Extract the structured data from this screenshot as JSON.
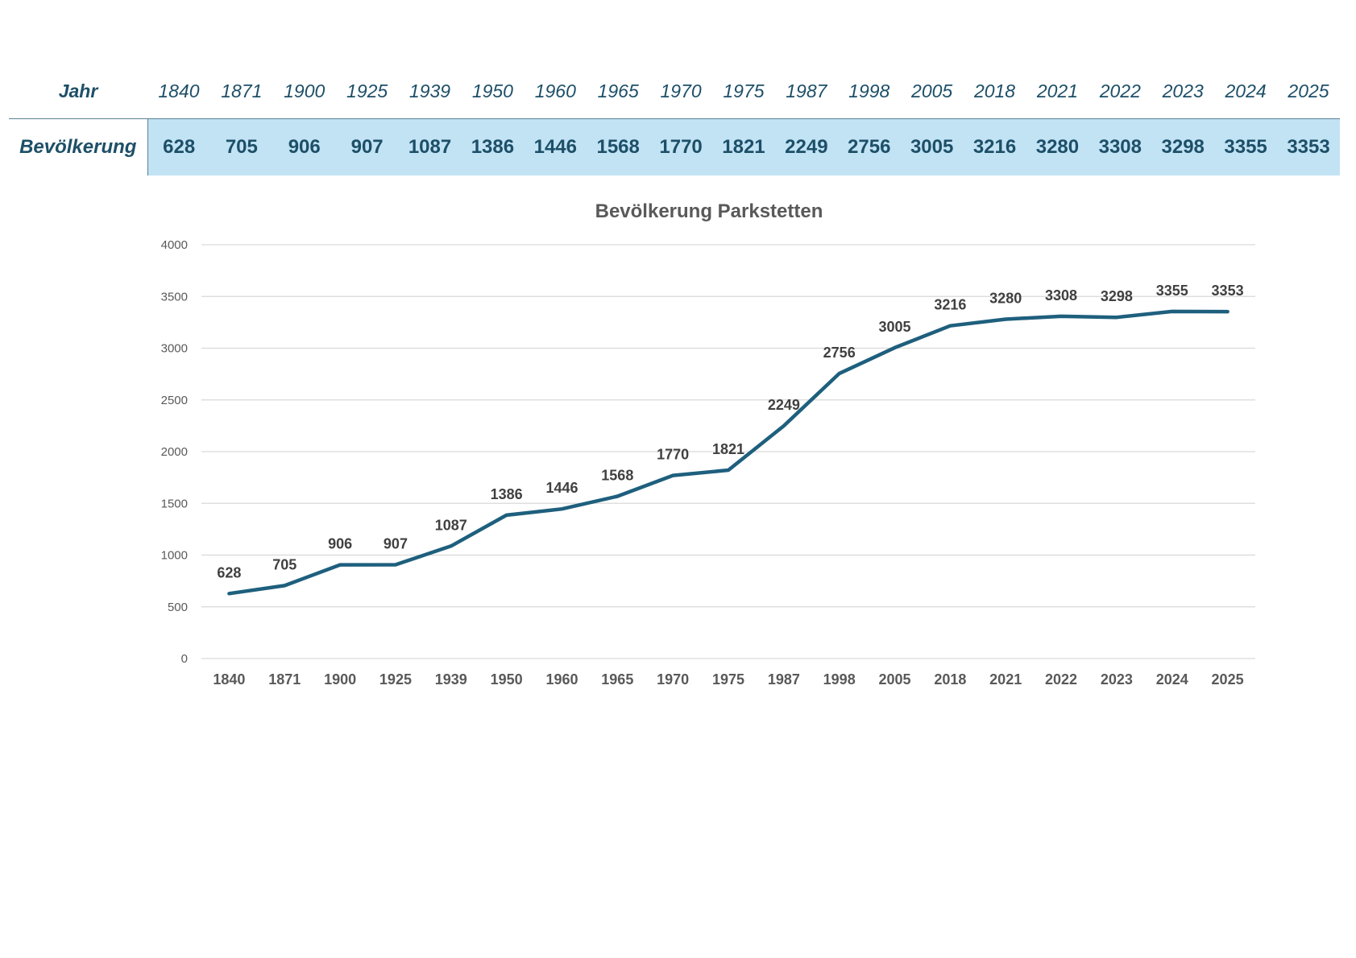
{
  "table": {
    "year_header": "Jahr",
    "pop_header": "Bevölkerung",
    "years": [
      "1840",
      "1871",
      "1900",
      "1925",
      "1939",
      "1950",
      "1960",
      "1965",
      "1970",
      "1975",
      "1987",
      "1998",
      "2005",
      "2018",
      "2021",
      "2022",
      "2023",
      "2024",
      "2025"
    ],
    "population": [
      "628",
      "705",
      "906",
      "907",
      "1087",
      "1386",
      "1446",
      "1568",
      "1770",
      "1821",
      "2249",
      "2756",
      "3005",
      "3216",
      "3280",
      "3308",
      "3298",
      "3355",
      "3353"
    ]
  },
  "colors": {
    "line": "#1e5f7d",
    "header_text": "#1d4f68",
    "row_fill": "#c2e3f4",
    "grid": "#d9d9d9"
  },
  "chart_data": {
    "type": "line",
    "title": "Bevölkerung Parkstetten",
    "categories": [
      "1840",
      "1871",
      "1900",
      "1925",
      "1939",
      "1950",
      "1960",
      "1965",
      "1970",
      "1975",
      "1987",
      "1998",
      "2005",
      "2018",
      "2021",
      "2022",
      "2023",
      "2024",
      "2025"
    ],
    "series": [
      {
        "values": [
          628,
          705,
          906,
          907,
          1087,
          1386,
          1446,
          1568,
          1770,
          1821,
          2249,
          2756,
          3005,
          3216,
          3280,
          3308,
          3298,
          3355,
          3353
        ]
      }
    ],
    "yticks": [
      "0",
      "500",
      "1000",
      "1500",
      "2000",
      "2500",
      "3000",
      "3500",
      "4000"
    ],
    "ylim": [
      0,
      4000
    ],
    "grid": true,
    "data_labels": true
  }
}
